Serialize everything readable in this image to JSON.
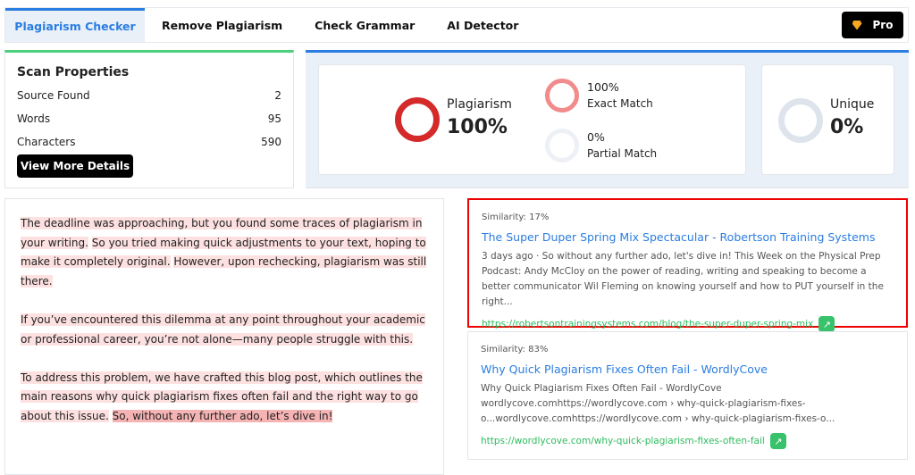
{
  "nav": {
    "tabs": [
      {
        "label": "Plagiarism Checker",
        "active": true
      },
      {
        "label": "Remove Plagiarism"
      },
      {
        "label": "Check Grammar"
      },
      {
        "label": "AI Detector"
      }
    ],
    "pro_label": "Pro"
  },
  "scan": {
    "title": "Scan Properties",
    "rows": [
      {
        "label": "Source Found",
        "value": "2"
      },
      {
        "label": "Words",
        "value": "95"
      },
      {
        "label": "Characters",
        "value": "590"
      }
    ],
    "button": "View More Details"
  },
  "stats": {
    "plagiarism": {
      "label": "Plagiarism",
      "value": "100%"
    },
    "exact": {
      "value": "100%",
      "label": "Exact Match"
    },
    "partial": {
      "value": "0%",
      "label": "Partial Match"
    },
    "unique": {
      "label": "Unique",
      "value": "0%"
    }
  },
  "text": {
    "paragraphs": [
      [
        "The deadline was approaching, but you found some traces of plagiarism in your writing.",
        "So you tried making quick adjustments to your text, hoping to make it completely original.",
        "However, upon rechecking, plagiarism was still there."
      ],
      [
        "If you’ve encountered this dilemma at any point throughout your academic or professional career, you’re not alone—many people struggle with this."
      ],
      [
        "To address this problem, we have crafted this blog post, which outlines the main reasons why quick plagiarism fixes often fail and the right way to go about this issue.",
        "So, without any further ado, let’s dive in!"
      ]
    ]
  },
  "results": [
    {
      "similarity": "Similarity: 17%",
      "title": "The Super Duper Spring Mix Spectacular - Robertson Training Systems",
      "desc": "3 days ago · So without any further ado, let's dive in! This Week on the Physical Prep Podcast: Andy McCloy on the power of reading, writing and speaking to become a better communicator Wil Fleming on knowing yourself and how to PUT yourself in the right...",
      "url": "https://robertsontrainingsystems.com/blog/the-super-duper-spring-mix",
      "selected": true
    },
    {
      "similarity": "Similarity: 83%",
      "title": "Why Quick Plagiarism Fixes Often Fail - WordlyCove",
      "desc": "Why Quick Plagiarism Fixes Often Fail - WordlyCove wordlycove.comhttps://wordlycove.com › why-quick-plagiarism-fixes-o...wordlycove.comhttps://wordlycove.com › why-quick-plagiarism-fixes-o...",
      "url": "https://wordlycove.com/why-quick-plagiarism-fixes-often-fail"
    }
  ],
  "colors": {
    "accent": "#2a7de1",
    "plagiarism": "#d42a2a",
    "exact": "#f28b8b",
    "highlight": "#fde0e0",
    "selected_border": "#ee0000",
    "url": "#2dbb5d"
  }
}
